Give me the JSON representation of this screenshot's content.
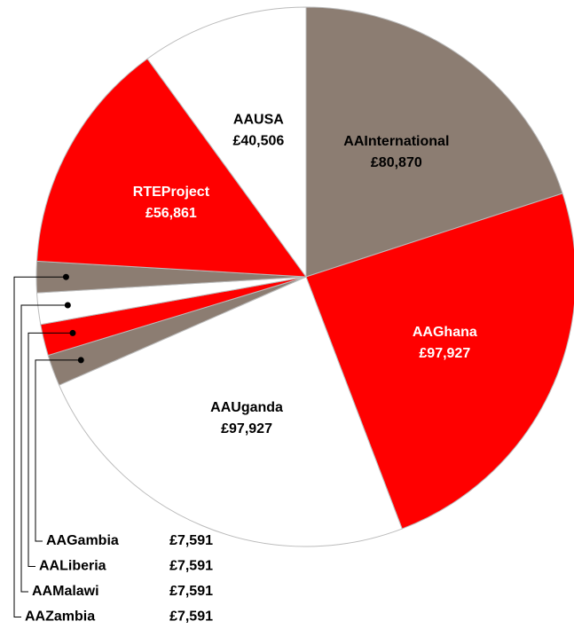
{
  "chart_data": {
    "type": "pie",
    "categories": [
      "AAInternational",
      "AAGhana",
      "AAUganda",
      "AAGambia",
      "AALiberia",
      "AAMalawi",
      "AAZambia",
      "RTEProject",
      "AAUSA"
    ],
    "values": [
      80870,
      97927,
      97927,
      7591,
      7591,
      7591,
      7591,
      56861,
      40506
    ],
    "value_labels": [
      "£80,870",
      "£97,927",
      "£97,927",
      "£7,591",
      "£7,591",
      "£7,591",
      "£7,591",
      "£56,861",
      "£40,506"
    ],
    "colors": [
      "#8c7d72",
      "#ff0000",
      "#ffffff",
      "#8c7d72",
      "#ff0000",
      "#ffffff",
      "#8c7d72",
      "#ff0000",
      "#ffffff"
    ]
  }
}
